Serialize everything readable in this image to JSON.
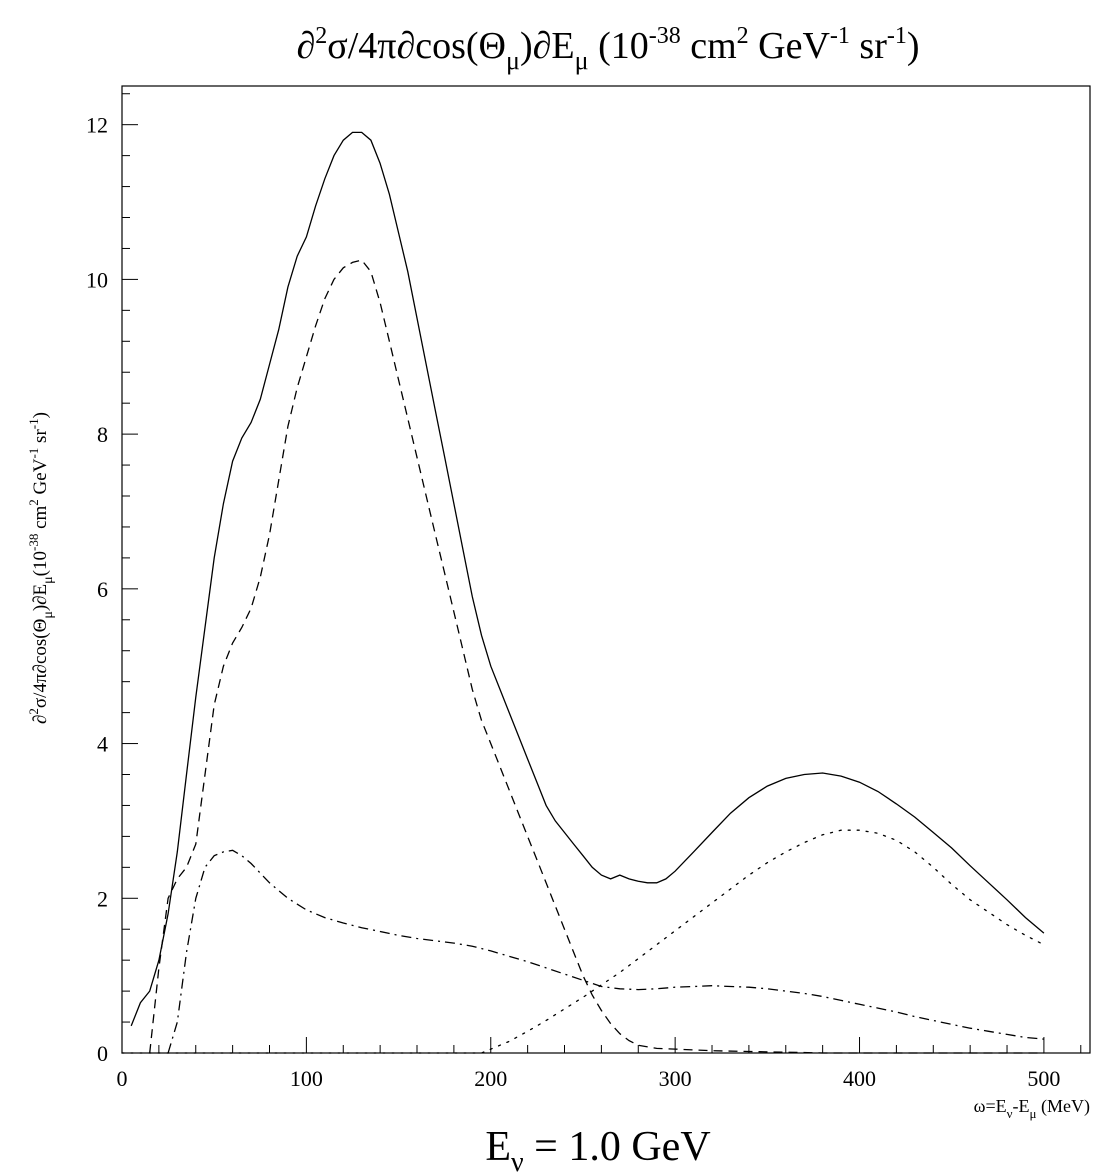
{
  "chart_data": {
    "type": "line",
    "title": "∂²σ/4π∂cos(Θμ)∂Eμ (10⁻³⁸ cm² GeV⁻¹ sr⁻¹)",
    "title_parts": {
      "a": "∂",
      "a_sup": "2",
      "b": "σ/4π∂cos(Θ",
      "b_sub": "μ",
      "c": ")∂E",
      "c_sub": "μ",
      "d": " (10",
      "d_sup": "-38",
      "e": " cm",
      "e_sup": "2",
      "f": " GeV",
      "f_sup": "-1",
      "g": " sr",
      "g_sup": "-1",
      "h": ")"
    },
    "ylabel_parts": {
      "a": "∂",
      "a_sup": "2",
      "b": "σ/4π∂cos(Θ",
      "b_sub": "μ",
      "c": ")∂E",
      "c_sub": "μ",
      "d": "(10",
      "d_sup": "-38",
      "e": " cm",
      "e_sup": "2",
      "f": " GeV",
      "f_sup": "-1",
      "g": " sr",
      "g_sup": "-1",
      "h": ")"
    },
    "xlabel_parts": {
      "a": "ω=E",
      "a_sub": "ν",
      "b": "-E",
      "b_sub": "μ",
      "c": " (MeV)"
    },
    "caption_parts": {
      "a": "E",
      "a_sub": "ν",
      "b": " = 1.0 GeV"
    },
    "xlim": [
      0,
      525
    ],
    "ylim": [
      0,
      12.5
    ],
    "xticks": [
      0,
      100,
      200,
      300,
      400,
      500
    ],
    "yticks": [
      0,
      2,
      4,
      6,
      8,
      10,
      12
    ],
    "x_minor_step": 20,
    "y_minor_step": 0.4,
    "series": [
      {
        "style": "solid",
        "points": [
          [
            5,
            0.35
          ],
          [
            10,
            0.65
          ],
          [
            15,
            0.8
          ],
          [
            20,
            1.2
          ],
          [
            25,
            1.8
          ],
          [
            30,
            2.6
          ],
          [
            35,
            3.6
          ],
          [
            40,
            4.6
          ],
          [
            45,
            5.5
          ],
          [
            50,
            6.4
          ],
          [
            55,
            7.1
          ],
          [
            60,
            7.65
          ],
          [
            65,
            7.95
          ],
          [
            70,
            8.15
          ],
          [
            75,
            8.45
          ],
          [
            80,
            8.9
          ],
          [
            85,
            9.35
          ],
          [
            90,
            9.9
          ],
          [
            95,
            10.3
          ],
          [
            100,
            10.55
          ],
          [
            105,
            10.95
          ],
          [
            110,
            11.3
          ],
          [
            115,
            11.6
          ],
          [
            120,
            11.8
          ],
          [
            125,
            11.9
          ],
          [
            130,
            11.9
          ],
          [
            135,
            11.8
          ],
          [
            140,
            11.5
          ],
          [
            145,
            11.1
          ],
          [
            150,
            10.6
          ],
          [
            155,
            10.1
          ],
          [
            160,
            9.5
          ],
          [
            165,
            8.9
          ],
          [
            170,
            8.3
          ],
          [
            175,
            7.7
          ],
          [
            180,
            7.1
          ],
          [
            185,
            6.5
          ],
          [
            190,
            5.9
          ],
          [
            195,
            5.4
          ],
          [
            200,
            5.0
          ],
          [
            205,
            4.7
          ],
          [
            210,
            4.4
          ],
          [
            215,
            4.1
          ],
          [
            220,
            3.8
          ],
          [
            225,
            3.5
          ],
          [
            230,
            3.2
          ],
          [
            235,
            3.0
          ],
          [
            240,
            2.85
          ],
          [
            245,
            2.7
          ],
          [
            250,
            2.55
          ],
          [
            255,
            2.4
          ],
          [
            260,
            2.3
          ],
          [
            265,
            2.25
          ],
          [
            270,
            2.3
          ],
          [
            275,
            2.25
          ],
          [
            280,
            2.22
          ],
          [
            285,
            2.2
          ],
          [
            290,
            2.2
          ],
          [
            295,
            2.25
          ],
          [
            300,
            2.35
          ],
          [
            310,
            2.6
          ],
          [
            320,
            2.85
          ],
          [
            330,
            3.1
          ],
          [
            340,
            3.3
          ],
          [
            350,
            3.45
          ],
          [
            360,
            3.55
          ],
          [
            370,
            3.6
          ],
          [
            380,
            3.62
          ],
          [
            390,
            3.58
          ],
          [
            400,
            3.5
          ],
          [
            410,
            3.38
          ],
          [
            420,
            3.22
          ],
          [
            430,
            3.05
          ],
          [
            440,
            2.85
          ],
          [
            450,
            2.65
          ],
          [
            460,
            2.42
          ],
          [
            470,
            2.2
          ],
          [
            480,
            1.98
          ],
          [
            490,
            1.75
          ],
          [
            500,
            1.55
          ]
        ]
      },
      {
        "style": "dashed",
        "points": [
          [
            15,
            0.0
          ],
          [
            20,
            1.1
          ],
          [
            25,
            2.0
          ],
          [
            30,
            2.25
          ],
          [
            35,
            2.4
          ],
          [
            40,
            2.7
          ],
          [
            45,
            3.6
          ],
          [
            50,
            4.5
          ],
          [
            55,
            5.0
          ],
          [
            60,
            5.3
          ],
          [
            65,
            5.5
          ],
          [
            70,
            5.75
          ],
          [
            75,
            6.15
          ],
          [
            80,
            6.7
          ],
          [
            85,
            7.4
          ],
          [
            90,
            8.1
          ],
          [
            95,
            8.6
          ],
          [
            100,
            9.0
          ],
          [
            105,
            9.4
          ],
          [
            110,
            9.75
          ],
          [
            115,
            10.0
          ],
          [
            120,
            10.15
          ],
          [
            125,
            10.22
          ],
          [
            130,
            10.25
          ],
          [
            135,
            10.1
          ],
          [
            140,
            9.7
          ],
          [
            145,
            9.2
          ],
          [
            150,
            8.7
          ],
          [
            155,
            8.2
          ],
          [
            160,
            7.7
          ],
          [
            165,
            7.2
          ],
          [
            170,
            6.7
          ],
          [
            175,
            6.2
          ],
          [
            180,
            5.7
          ],
          [
            185,
            5.2
          ],
          [
            190,
            4.7
          ],
          [
            195,
            4.3
          ],
          [
            200,
            4.0
          ],
          [
            205,
            3.7
          ],
          [
            210,
            3.4
          ],
          [
            215,
            3.1
          ],
          [
            220,
            2.8
          ],
          [
            225,
            2.5
          ],
          [
            230,
            2.2
          ],
          [
            235,
            1.9
          ],
          [
            240,
            1.6
          ],
          [
            245,
            1.3
          ],
          [
            250,
            1.0
          ],
          [
            255,
            0.75
          ],
          [
            260,
            0.55
          ],
          [
            265,
            0.38
          ],
          [
            270,
            0.25
          ],
          [
            275,
            0.16
          ],
          [
            280,
            0.1
          ],
          [
            290,
            0.06
          ],
          [
            300,
            0.05
          ],
          [
            320,
            0.03
          ],
          [
            340,
            0.02
          ],
          [
            360,
            0.01
          ],
          [
            380,
            0.0
          ],
          [
            400,
            0.0
          ],
          [
            450,
            0.0
          ],
          [
            500,
            0.0
          ]
        ]
      },
      {
        "style": "dashdot",
        "points": [
          [
            25,
            0.0
          ],
          [
            30,
            0.4
          ],
          [
            35,
            1.3
          ],
          [
            40,
            2.0
          ],
          [
            45,
            2.4
          ],
          [
            50,
            2.55
          ],
          [
            55,
            2.6
          ],
          [
            60,
            2.62
          ],
          [
            65,
            2.55
          ],
          [
            70,
            2.45
          ],
          [
            80,
            2.2
          ],
          [
            90,
            2.0
          ],
          [
            100,
            1.85
          ],
          [
            110,
            1.75
          ],
          [
            120,
            1.68
          ],
          [
            130,
            1.62
          ],
          [
            140,
            1.57
          ],
          [
            150,
            1.52
          ],
          [
            160,
            1.48
          ],
          [
            170,
            1.45
          ],
          [
            180,
            1.42
          ],
          [
            190,
            1.38
          ],
          [
            200,
            1.32
          ],
          [
            210,
            1.25
          ],
          [
            220,
            1.18
          ],
          [
            230,
            1.1
          ],
          [
            240,
            1.02
          ],
          [
            250,
            0.94
          ],
          [
            260,
            0.86
          ],
          [
            270,
            0.83
          ],
          [
            280,
            0.82
          ],
          [
            290,
            0.83
          ],
          [
            300,
            0.85
          ],
          [
            310,
            0.86
          ],
          [
            320,
            0.87
          ],
          [
            330,
            0.86
          ],
          [
            340,
            0.85
          ],
          [
            350,
            0.83
          ],
          [
            360,
            0.8
          ],
          [
            370,
            0.77
          ],
          [
            380,
            0.73
          ],
          [
            390,
            0.68
          ],
          [
            400,
            0.63
          ],
          [
            410,
            0.58
          ],
          [
            420,
            0.53
          ],
          [
            430,
            0.47
          ],
          [
            440,
            0.42
          ],
          [
            450,
            0.37
          ],
          [
            460,
            0.32
          ],
          [
            470,
            0.28
          ],
          [
            480,
            0.24
          ],
          [
            490,
            0.2
          ],
          [
            500,
            0.18
          ]
        ]
      },
      {
        "style": "dotted",
        "points": [
          [
            0,
            0.0
          ],
          [
            195,
            0.0
          ],
          [
            200,
            0.05
          ],
          [
            210,
            0.15
          ],
          [
            220,
            0.28
          ],
          [
            230,
            0.42
          ],
          [
            240,
            0.57
          ],
          [
            250,
            0.72
          ],
          [
            260,
            0.88
          ],
          [
            270,
            1.04
          ],
          [
            280,
            1.22
          ],
          [
            290,
            1.4
          ],
          [
            300,
            1.58
          ],
          [
            310,
            1.76
          ],
          [
            320,
            1.94
          ],
          [
            330,
            2.12
          ],
          [
            340,
            2.3
          ],
          [
            350,
            2.46
          ],
          [
            360,
            2.6
          ],
          [
            370,
            2.72
          ],
          [
            380,
            2.82
          ],
          [
            390,
            2.88
          ],
          [
            400,
            2.88
          ],
          [
            410,
            2.84
          ],
          [
            420,
            2.75
          ],
          [
            430,
            2.6
          ],
          [
            440,
            2.4
          ],
          [
            450,
            2.18
          ],
          [
            460,
            1.98
          ],
          [
            470,
            1.82
          ],
          [
            480,
            1.66
          ],
          [
            490,
            1.52
          ],
          [
            500,
            1.4
          ]
        ]
      }
    ]
  }
}
